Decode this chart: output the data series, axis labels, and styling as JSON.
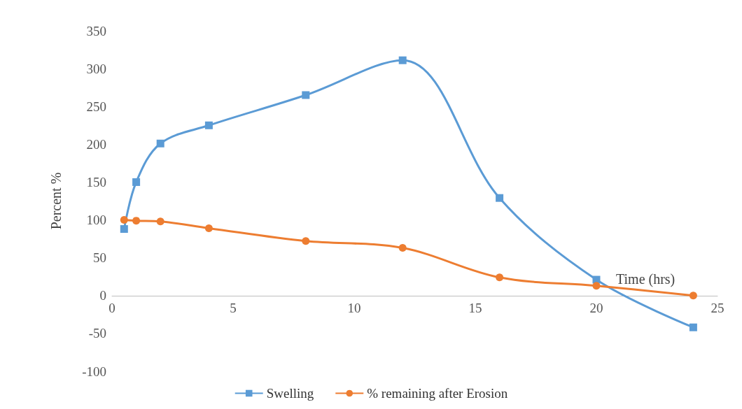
{
  "chart_data": {
    "type": "line",
    "xlabel": "Time (hrs)",
    "ylabel": "Percent %",
    "x": [
      0.5,
      1,
      2,
      4,
      8,
      12,
      16,
      20,
      24
    ],
    "series": [
      {
        "name": "Swelling",
        "color": "#5b9bd5",
        "marker": "square",
        "values": [
          88,
          150,
          201,
          225,
          265,
          311,
          129,
          21,
          -42
        ]
      },
      {
        "name": "% remaining after Erosion",
        "color": "#ed7d31",
        "marker": "circle",
        "values": [
          100,
          99,
          98,
          89,
          72,
          63,
          24,
          13,
          0
        ]
      }
    ],
    "xlim": [
      0,
      25
    ],
    "xticks": [
      0,
      5,
      10,
      15,
      20,
      25
    ],
    "ylim": [
      -100,
      350
    ],
    "yticks": [
      -100,
      -50,
      0,
      50,
      100,
      150,
      200,
      250,
      300,
      350
    ],
    "grid": false,
    "legend": "bottom"
  }
}
